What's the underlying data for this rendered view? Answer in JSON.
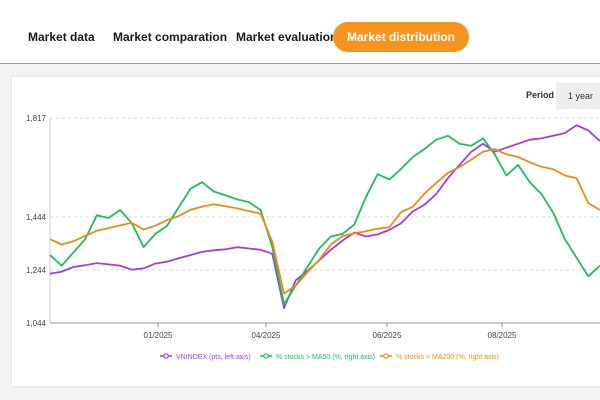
{
  "tabs": [
    {
      "label": "Market data",
      "active": false
    },
    {
      "label": "Market comparation",
      "active": false
    },
    {
      "label": "Market evaluation",
      "active": false
    },
    {
      "label": "Market distribution",
      "active": true
    }
  ],
  "period": {
    "label": "Period",
    "value": "1 year"
  },
  "colors": {
    "accent": "#f7941d",
    "vnindex": "#a63de3",
    "ma50": "#1cbf5a",
    "ma200": "#ee8a14"
  },
  "chart_data": {
    "type": "line",
    "title": "",
    "xlabel": "",
    "ylabel": "",
    "x_ticks": [
      "01/2025",
      "04/2025",
      "06/2025",
      "08/2025"
    ],
    "y_ticks": [
      "1,817",
      "1,444",
      "1,244",
      "1,044"
    ],
    "ylim": [
      1044,
      1817
    ],
    "series": [
      {
        "name": "VNINDEX (pts, left axis)",
        "color": "#a63de3",
        "values": [
          1230,
          1238,
          1255,
          1262,
          1270,
          1265,
          1260,
          1245,
          1250,
          1268,
          1275,
          1288,
          1300,
          1312,
          1318,
          1322,
          1330,
          1325,
          1320,
          1305,
          1100,
          1205,
          1240,
          1280,
          1320,
          1355,
          1385,
          1370,
          1378,
          1395,
          1420,
          1465,
          1490,
          1530,
          1590,
          1640,
          1690,
          1720,
          1690,
          1705,
          1720,
          1735,
          1740,
          1750,
          1760,
          1790,
          1770,
          1730
        ]
      },
      {
        "name": "% stocks > MA50 (%, right axis)",
        "color": "#1cbf5a",
        "values": [
          1300,
          1260,
          1310,
          1360,
          1450,
          1440,
          1470,
          1420,
          1330,
          1380,
          1410,
          1480,
          1550,
          1575,
          1540,
          1525,
          1510,
          1500,
          1470,
          1330,
          1115,
          1185,
          1255,
          1325,
          1370,
          1380,
          1415,
          1520,
          1605,
          1585,
          1625,
          1670,
          1700,
          1735,
          1750,
          1720,
          1712,
          1740,
          1680,
          1600,
          1640,
          1575,
          1530,
          1460,
          1360,
          1290,
          1220,
          1260
        ]
      },
      {
        "name": "% stocks > MA200 (%, right axis)",
        "color": "#ee8a14",
        "values": [
          1360,
          1340,
          1352,
          1372,
          1392,
          1402,
          1412,
          1422,
          1396,
          1411,
          1432,
          1447,
          1471,
          1483,
          1492,
          1484,
          1476,
          1466,
          1456,
          1350,
          1155,
          1185,
          1235,
          1282,
          1340,
          1372,
          1382,
          1390,
          1400,
          1405,
          1462,
          1482,
          1532,
          1572,
          1610,
          1632,
          1660,
          1690,
          1700,
          1680,
          1670,
          1650,
          1633,
          1624,
          1600,
          1590,
          1496,
          1470
        ]
      }
    ]
  }
}
